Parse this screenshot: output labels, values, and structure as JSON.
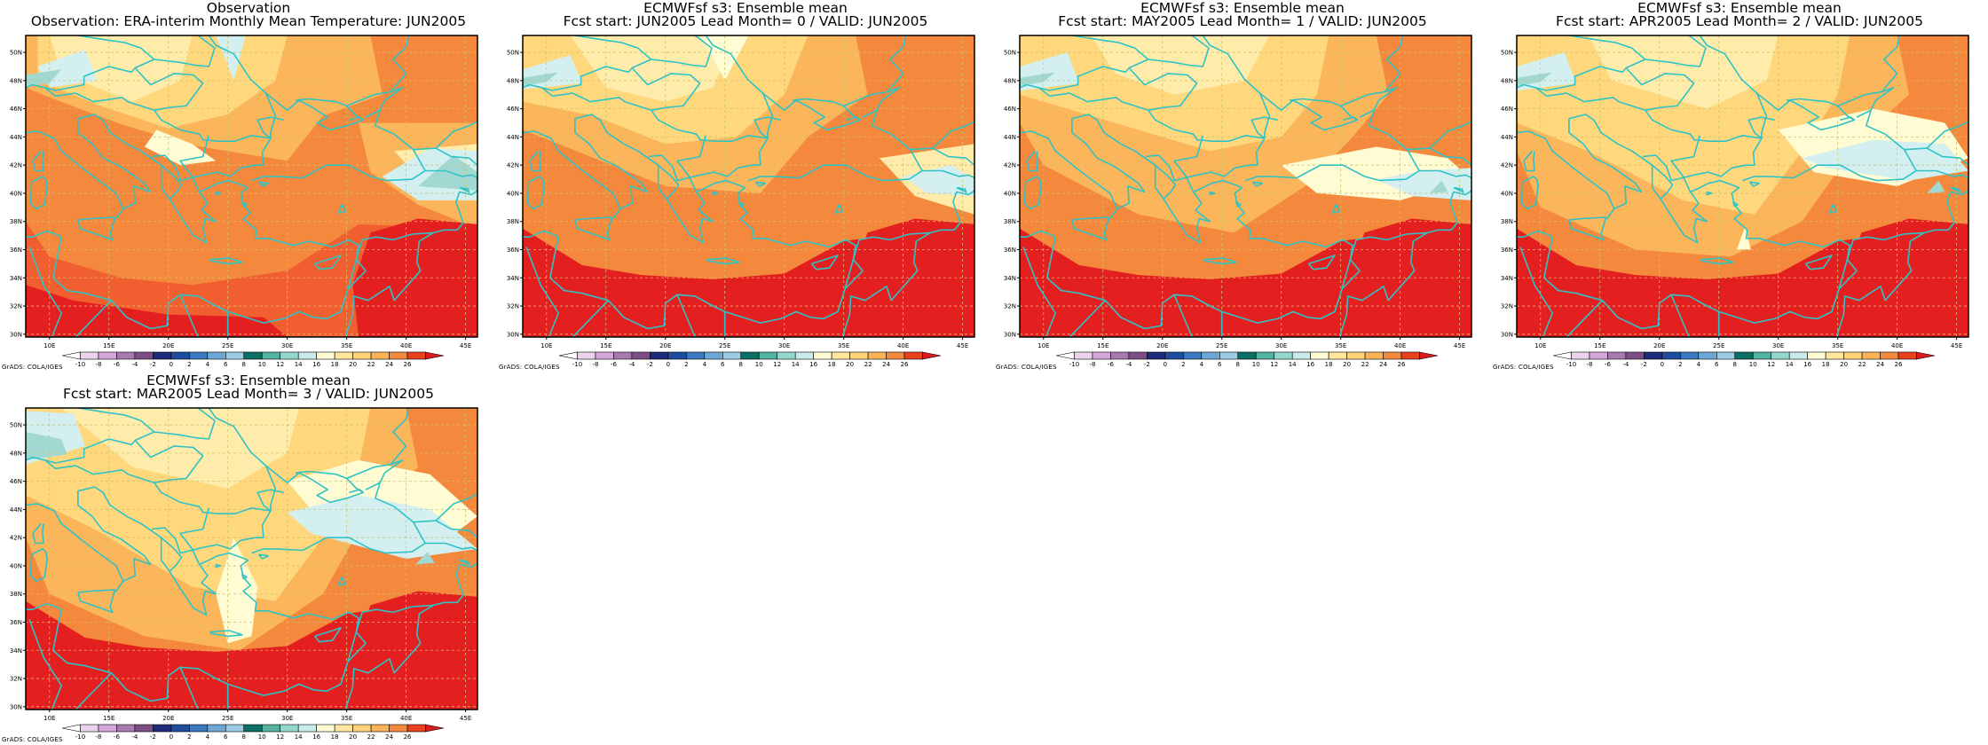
{
  "colors": {
    "coastline": "#2fc3c6",
    "grid": "#c9c46a",
    "frame": "#000000"
  },
  "axes": {
    "lon_labels": [
      "10E",
      "15E",
      "20E",
      "25E",
      "30E",
      "35E",
      "40E",
      "45E"
    ],
    "lat_labels": [
      "30N",
      "32N",
      "34N",
      "36N",
      "38N",
      "40N",
      "42N",
      "44N",
      "46N",
      "48N",
      "50N"
    ],
    "lon_range": [
      8,
      46
    ],
    "lat_range": [
      29.8,
      51.2
    ]
  },
  "colorbar": {
    "labels": [
      "-10",
      "-8",
      "-6",
      "-4",
      "-2",
      "0",
      "2",
      "4",
      "6",
      "8",
      "10",
      "12",
      "14",
      "16",
      "18",
      "20",
      "22",
      "24",
      "26"
    ],
    "colors": [
      "#ffffff",
      "#ecd2ee",
      "#d4a6da",
      "#a97aaf",
      "#7b4e86",
      "#1f2c7c",
      "#1d4d9c",
      "#3b78be",
      "#6ea6d6",
      "#9ccbe4",
      "#0b6f63",
      "#55b2a1",
      "#96d7cd",
      "#c8ecea",
      "#fffcd4",
      "#ffe7a0",
      "#ffd27a",
      "#fbb258",
      "#f48a3f",
      "#e8411e",
      "#d61e1e"
    ]
  },
  "credit": "GrADS: COLA/IGES",
  "panels": [
    {
      "title": "Observation",
      "subtitle": "Observation: ERA-interim Monthly Mean Temperature: JUN2005"
    },
    {
      "title": "ECMWFsf s3: Ensemble mean",
      "subtitle": "Fcst start: JUN2005   Lead Month= 0 / VALID: JUN2005"
    },
    {
      "title": "ECMWFsf s3: Ensemble mean",
      "subtitle": "Fcst start: MAY2005   Lead Month= 1 / VALID: JUN2005"
    },
    {
      "title": "ECMWFsf s3: Ensemble mean",
      "subtitle": "Fcst start: APR2005   Lead Month= 2 / VALID: JUN2005"
    },
    {
      "title": "ECMWFsf s3: Ensemble mean",
      "subtitle": "Fcst start: MAR2005   Lead Month= 3 / VALID: JUN2005"
    }
  ]
}
